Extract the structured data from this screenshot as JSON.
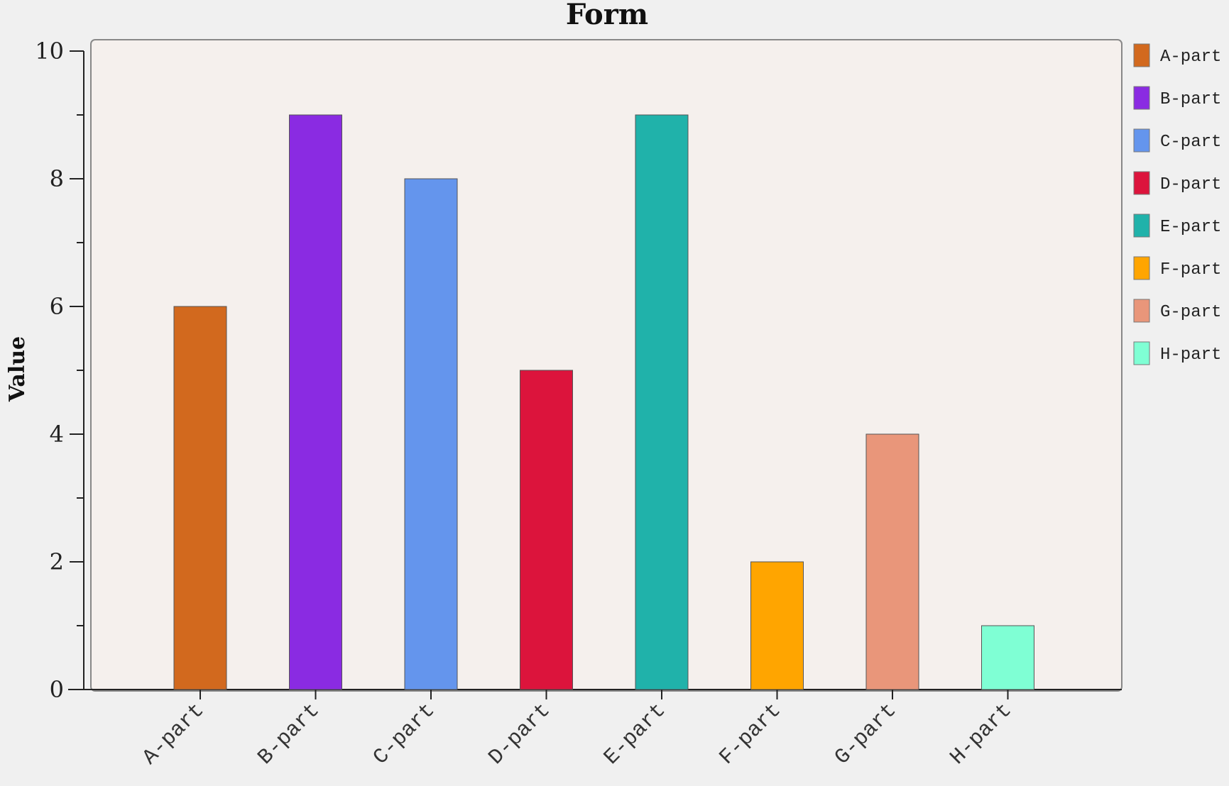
{
  "chart_data": {
    "type": "bar",
    "title": "Form",
    "xlabel": "",
    "ylabel": "Value",
    "ylim": [
      0,
      10
    ],
    "yticks": [
      0,
      2,
      4,
      6,
      8,
      10
    ],
    "grid": false,
    "legend": "right",
    "categories": [
      "A-part",
      "B-part",
      "C-part",
      "D-part",
      "E-part",
      "F-part",
      "G-part",
      "H-part"
    ],
    "values": [
      6,
      9,
      8,
      5,
      9,
      2,
      4,
      1
    ],
    "colors": [
      "#d2691e",
      "#8a2be2",
      "#6495ed",
      "#dc143c",
      "#20b2aa",
      "#ffa500",
      "#e9967a",
      "#7fffd4"
    ],
    "legend_entries": [
      "A-part",
      "B-part",
      "C-part",
      "D-part",
      "E-part",
      "F-part",
      "G-part",
      "H-part"
    ]
  }
}
